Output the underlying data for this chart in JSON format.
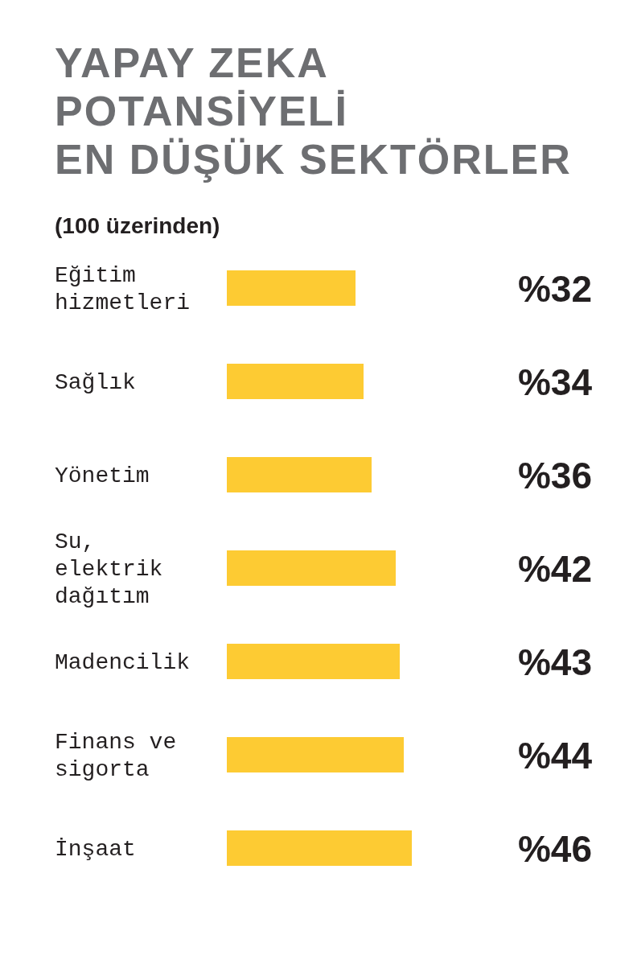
{
  "chart_data": {
    "type": "bar",
    "orientation": "horizontal",
    "title": "YAPAY ZEKA\nPOTANSİYELİ\nEN DÜŞÜK SEKTÖRLER",
    "subtitle": "(100 üzerinden)",
    "categories": [
      "Eğitim hizmetleri",
      "Sağlık",
      "Yönetim",
      "Su, elektrik dağıtım",
      "Madencilik",
      "Finans ve sigorta",
      "İnşaat"
    ],
    "values": [
      32,
      34,
      36,
      42,
      43,
      44,
      46
    ],
    "value_labels": [
      "%32",
      "%34",
      "%36",
      "%42",
      "%43",
      "%44",
      "%46"
    ],
    "color": "#fdcb33"
  }
}
